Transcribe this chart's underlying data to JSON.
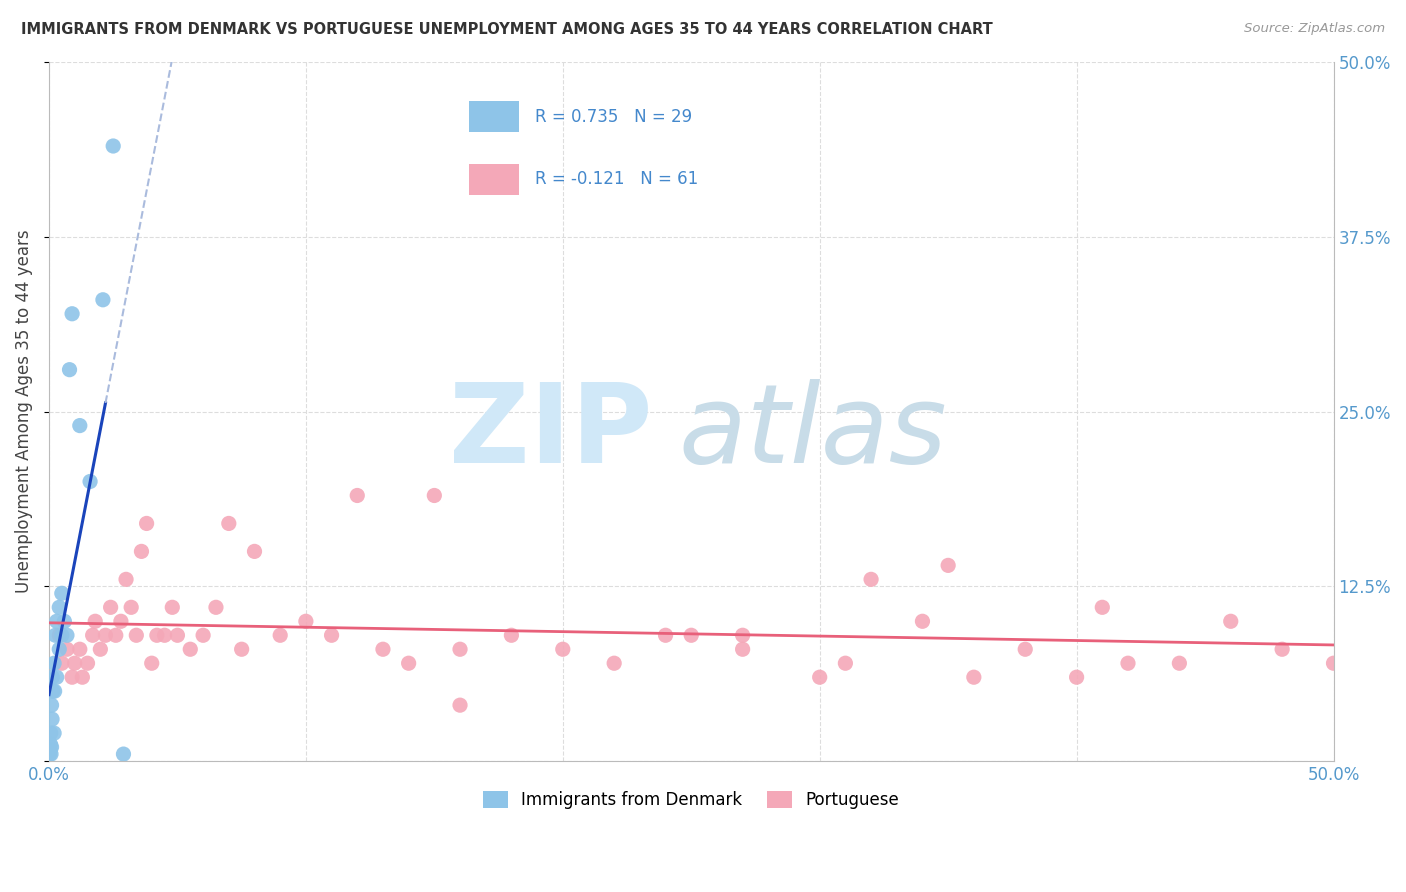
{
  "title": "IMMIGRANTS FROM DENMARK VS PORTUGUESE UNEMPLOYMENT AMONG AGES 35 TO 44 YEARS CORRELATION CHART",
  "source": "Source: ZipAtlas.com",
  "ylabel": "Unemployment Among Ages 35 to 44 years",
  "xlim": [
    0.0,
    0.5
  ],
  "ylim": [
    0.0,
    0.5
  ],
  "yticks": [
    0.0,
    0.125,
    0.25,
    0.375,
    0.5
  ],
  "ytick_labels": [
    "",
    "12.5%",
    "25.0%",
    "37.5%",
    "50.0%"
  ],
  "xticks": [
    0.0,
    0.1,
    0.2,
    0.3,
    0.4,
    0.5
  ],
  "xtick_labels": [
    "0.0%",
    "",
    "",
    "",
    "",
    "50.0%"
  ],
  "background_color": "#ffffff",
  "grid_color": "#dddddd",
  "blue_color": "#8ec4e8",
  "pink_color": "#f4a8b8",
  "blue_line_color": "#1a44bb",
  "pink_line_color": "#e8607a",
  "blue_dash_color": "#aabbdd",
  "legend_blue_label": "R = 0.735   N = 29",
  "legend_pink_label": "R = -0.121   N = 61",
  "bottom_legend_blue": "Immigrants from Denmark",
  "bottom_legend_pink": "Portuguese",
  "watermark_zip": "ZIP",
  "watermark_atlas": "atlas",
  "watermark_color_zip": "#d0e8f8",
  "watermark_color_atlas": "#c8dce8",
  "blue_x": [
    0.0003,
    0.0005,
    0.0006,
    0.0007,
    0.0008,
    0.001,
    0.001,
    0.0012,
    0.0013,
    0.0015,
    0.002,
    0.002,
    0.0022,
    0.0025,
    0.003,
    0.003,
    0.004,
    0.004,
    0.005,
    0.005,
    0.006,
    0.007,
    0.008,
    0.009,
    0.012,
    0.016,
    0.021,
    0.025,
    0.029
  ],
  "blue_y": [
    0.005,
    0.008,
    0.012,
    0.02,
    0.005,
    0.01,
    0.04,
    0.03,
    0.06,
    0.05,
    0.02,
    0.07,
    0.05,
    0.09,
    0.06,
    0.1,
    0.08,
    0.11,
    0.09,
    0.12,
    0.1,
    0.09,
    0.28,
    0.32,
    0.24,
    0.2,
    0.33,
    0.44,
    0.005
  ],
  "pink_x": [
    0.004,
    0.005,
    0.007,
    0.009,
    0.01,
    0.012,
    0.013,
    0.015,
    0.017,
    0.018,
    0.02,
    0.022,
    0.024,
    0.026,
    0.028,
    0.03,
    0.032,
    0.034,
    0.036,
    0.038,
    0.04,
    0.042,
    0.045,
    0.048,
    0.05,
    0.055,
    0.06,
    0.065,
    0.07,
    0.075,
    0.08,
    0.09,
    0.1,
    0.11,
    0.12,
    0.13,
    0.14,
    0.15,
    0.16,
    0.18,
    0.2,
    0.22,
    0.24,
    0.25,
    0.27,
    0.3,
    0.32,
    0.34,
    0.36,
    0.38,
    0.4,
    0.42,
    0.44,
    0.46,
    0.48,
    0.5,
    0.35,
    0.41,
    0.27,
    0.31,
    0.16
  ],
  "pink_y": [
    0.09,
    0.07,
    0.08,
    0.06,
    0.07,
    0.08,
    0.06,
    0.07,
    0.09,
    0.1,
    0.08,
    0.09,
    0.11,
    0.09,
    0.1,
    0.13,
    0.11,
    0.09,
    0.15,
    0.17,
    0.07,
    0.09,
    0.09,
    0.11,
    0.09,
    0.08,
    0.09,
    0.11,
    0.17,
    0.08,
    0.15,
    0.09,
    0.1,
    0.09,
    0.19,
    0.08,
    0.07,
    0.19,
    0.08,
    0.09,
    0.08,
    0.07,
    0.09,
    0.09,
    0.09,
    0.06,
    0.13,
    0.1,
    0.06,
    0.08,
    0.06,
    0.07,
    0.07,
    0.1,
    0.08,
    0.07,
    0.14,
    0.11,
    0.08,
    0.07,
    0.04
  ]
}
